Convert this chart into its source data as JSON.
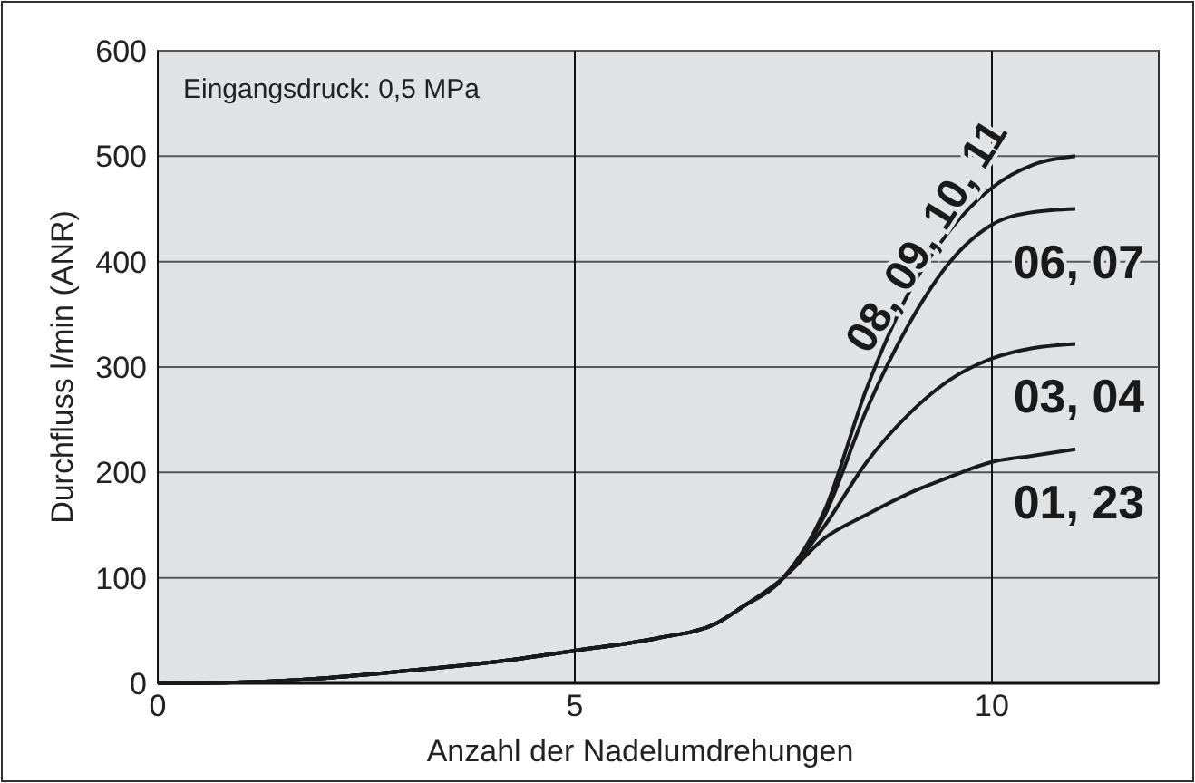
{
  "chart_data": {
    "type": "line",
    "xlabel": "Anzahl der Nadelumdrehungen",
    "ylabel": "Durchfluss l/min (ANR)",
    "annotations": [
      "Eingangsdruck: 0,5 MPa"
    ],
    "xlim": [
      0,
      12
    ],
    "ylim": [
      0,
      600
    ],
    "xticks": [
      0,
      5,
      10
    ],
    "yticks": [
      0,
      100,
      200,
      300,
      400,
      500,
      600
    ],
    "grid": true,
    "line_style": "solid",
    "series": [
      {
        "name": "01, 23",
        "color": "#1a1a1a",
        "x": [
          0,
          1,
          2,
          3,
          4,
          5,
          6,
          6.7,
          7,
          7.5,
          8,
          8.5,
          9,
          9.5,
          10,
          10.5,
          11
        ],
        "values": [
          0,
          1,
          5,
          12,
          20,
          31,
          43,
          57,
          72,
          100,
          138,
          160,
          180,
          196,
          210,
          216,
          222
        ]
      },
      {
        "name": "03, 04",
        "color": "#1a1a1a",
        "x": [
          0,
          1,
          2,
          3,
          4,
          5,
          6,
          6.7,
          7,
          7.5,
          8,
          8.5,
          9,
          9.5,
          10,
          10.5,
          11
        ],
        "values": [
          0,
          1,
          5,
          12,
          20,
          31,
          43,
          57,
          72,
          100,
          150,
          210,
          255,
          288,
          308,
          318,
          322
        ]
      },
      {
        "name": "06, 07",
        "color": "#1a1a1a",
        "x": [
          0,
          1,
          2,
          3,
          4,
          5,
          6,
          6.7,
          7,
          7.5,
          8,
          8.5,
          9,
          9.5,
          10,
          10.5,
          11
        ],
        "values": [
          0,
          1,
          5,
          12,
          20,
          31,
          43,
          57,
          72,
          100,
          160,
          260,
          340,
          400,
          435,
          447,
          450
        ]
      },
      {
        "name": "08, 09, 10, 11",
        "color": "#1a1a1a",
        "x": [
          0,
          1,
          2,
          3,
          4,
          5,
          6,
          6.7,
          7,
          7.5,
          8,
          8.5,
          9,
          9.5,
          10,
          10.5,
          11
        ],
        "values": [
          0,
          1,
          5,
          12,
          20,
          31,
          43,
          57,
          72,
          100,
          165,
          280,
          370,
          430,
          470,
          492,
          500
        ]
      }
    ]
  }
}
